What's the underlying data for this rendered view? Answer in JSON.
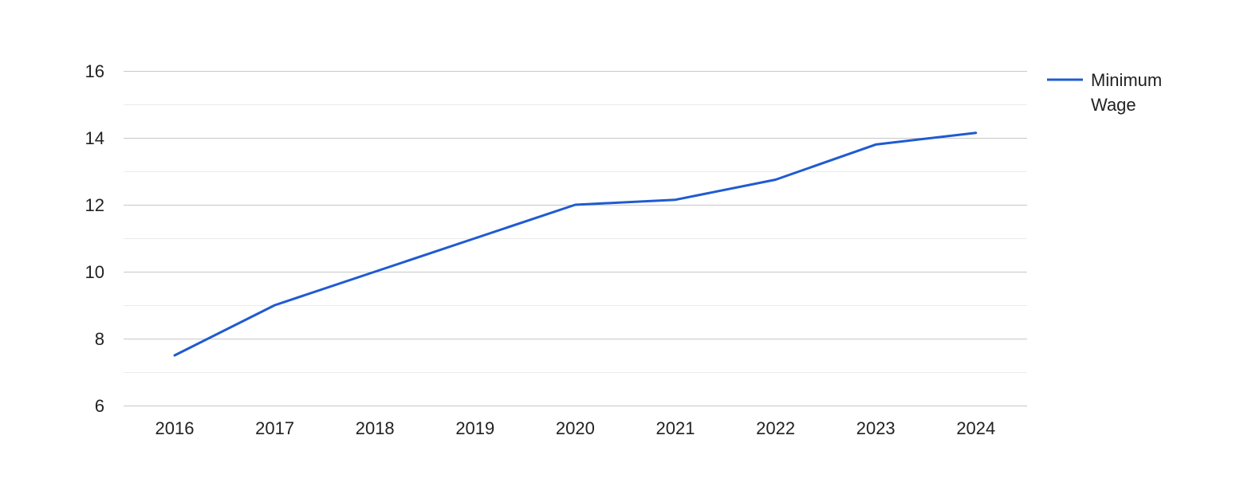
{
  "chart_data": {
    "type": "line",
    "title": "",
    "xlabel": "",
    "ylabel": "",
    "categories": [
      "2016",
      "2017",
      "2018",
      "2019",
      "2020",
      "2021",
      "2022",
      "2023",
      "2024"
    ],
    "series": [
      {
        "name": "Minimum Wage",
        "color": "#1f5bd1",
        "values": [
          7.5,
          9.0,
          10.0,
          11.0,
          12.0,
          12.15,
          12.75,
          13.8,
          14.15
        ]
      }
    ],
    "ylim": [
      6,
      16
    ],
    "yticks": [
      "6",
      "8",
      "10",
      "12",
      "14",
      "16"
    ],
    "grid": true,
    "legend": {
      "position": "right",
      "lines": [
        "Minimum",
        "Wage"
      ]
    },
    "colors": {
      "major_grid": "#c8c8c8",
      "minor_grid": "#ebebeb",
      "text": "#222222"
    }
  }
}
